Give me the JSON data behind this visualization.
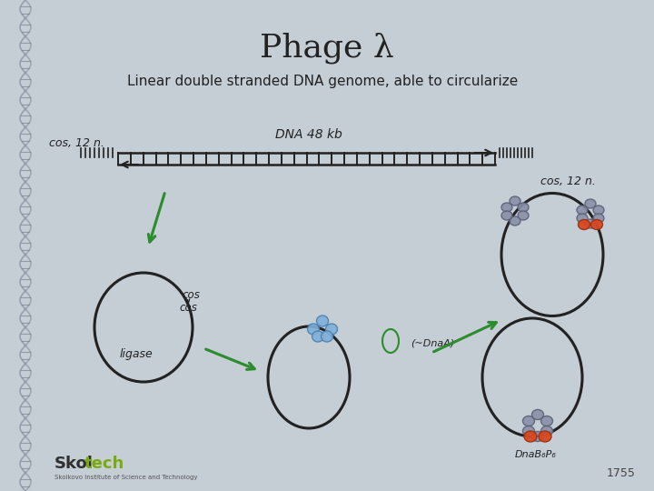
{
  "title": "Phage λ",
  "subtitle": "Linear double stranded DNA genome, able to circularize",
  "bg_color": "#c5cdd5",
  "dna_label": "DNA 48 kb",
  "cos_left": "cos, 12 n.",
  "cos_right": "cos, 12 n.",
  "ligase_label": "ligase",
  "dnaA_label": "(~DnaA)",
  "dnaB_label": "DnaB₆P₆",
  "year": "1755"
}
